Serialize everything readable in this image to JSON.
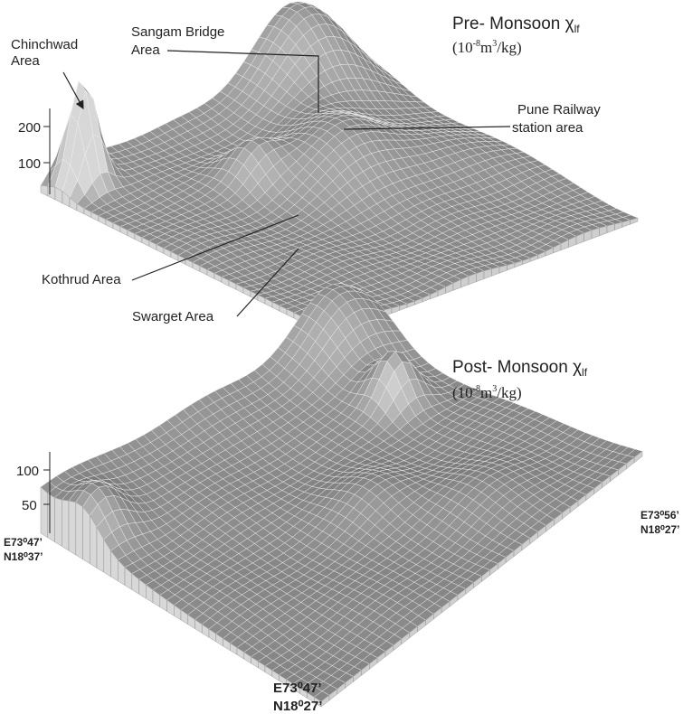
{
  "panels": [
    {
      "title": "Pre- Monsoon χ",
      "title_subscript": "lf",
      "unit": [
        "(10",
        "-8",
        "m",
        "3",
        "/kg)"
      ],
      "z_labels": [
        "200",
        "100"
      ],
      "annotations": [
        [
          "Chinchwad",
          "Area"
        ],
        [
          "Sangam Bridge",
          "Area"
        ],
        [
          "Pune Railway",
          "station area"
        ],
        [
          "Kothrud Area"
        ],
        [
          "Swarget Area"
        ]
      ]
    },
    {
      "title": "Post- Monsoon χ",
      "title_subscript": "lf",
      "unit": [
        "(10",
        "-8",
        "m",
        "3",
        "/kg)"
      ],
      "z_labels": [
        "100",
        "50"
      ],
      "coordinates": {
        "west": [
          "E73⁰47’",
          "N18⁰37’"
        ],
        "east": [
          "E73⁰56’",
          "N18⁰27’"
        ],
        "south": [
          "E73⁰47’",
          "N18⁰27’"
        ]
      }
    }
  ]
}
